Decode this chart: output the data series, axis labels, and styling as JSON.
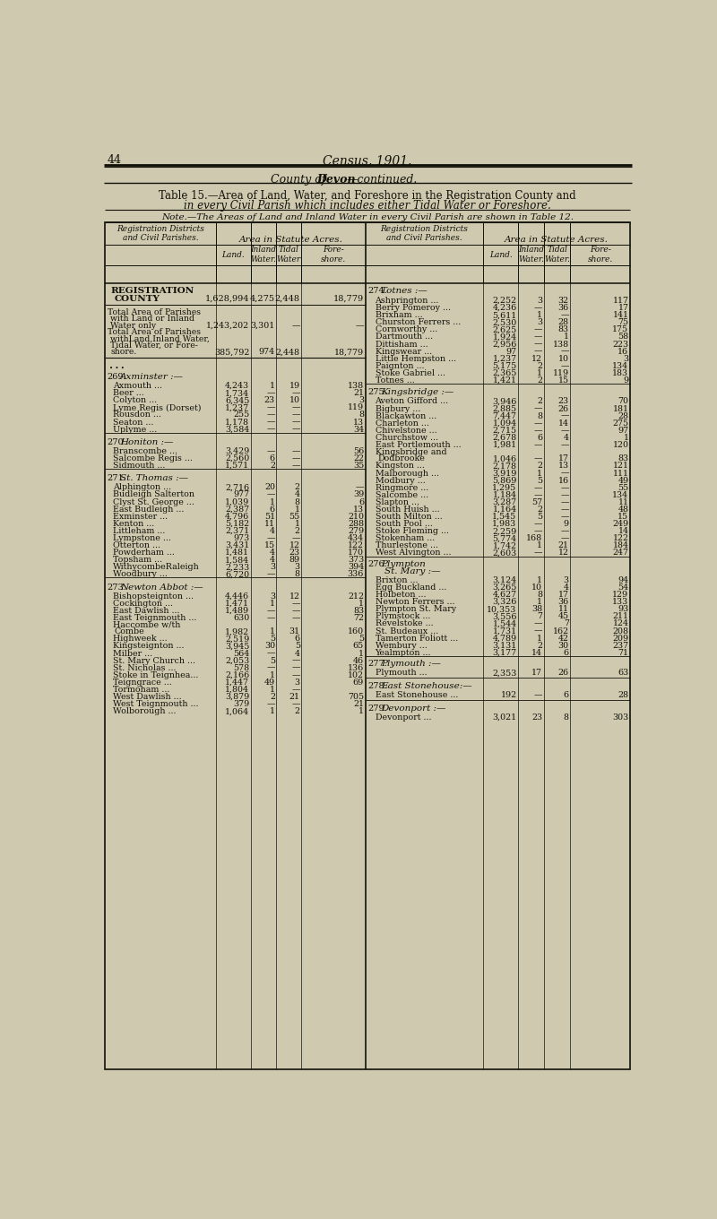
{
  "page_num": "44",
  "page_title": "Census, 1901.",
  "county_header_pre": "County of ",
  "county_header_bold": "Devon",
  "county_header_post": "—continued.",
  "table_title_line1": "Table 15.—Area of Land, Water, and Foreshore in the Registration County and",
  "table_title_line2": "in every Civil Parish which includes either Tidal Water or Foreshore.",
  "note": "Note.—The Areas of Land and Inland Water in every Civil Parish are shown in Table 12.",
  "area_header": "Area in Statute Acres.",
  "reg_dist_header": "Registration Districts\nand Civil Parishes.",
  "sub_cols": [
    "Land.",
    "Inland\nWater.",
    "Tidal\nWater",
    "Fore-\nshore."
  ],
  "bg_color": "#cfc9b0",
  "text_color": "#111108",
  "left_sections": [
    {
      "type": "summary",
      "name": "REGISTRATION\nCOUNTY",
      "land": "1,628,994",
      "inland": "4,275",
      "tidal": "2,448",
      "fore": "18,779"
    },
    {
      "type": "totals",
      "entries": [
        {
          "name": "Total Area of Parishes\nwith Land or Inland\nWater only",
          "land": "1,243,202",
          "inland": "3,301",
          "tidal": "—",
          "fore": "—"
        },
        {
          "name": "Total Area of Parishes\nwithLand,Inland Water,\nTidal Water, or Fore-\nshore.",
          "land": "385,792",
          "inland": "974",
          "tidal": "2,448",
          "fore": "18,779"
        }
      ]
    },
    {
      "type": "district",
      "num": "269.",
      "name": "Axminster :—",
      "parishes": [
        {
          "name": "Axmouth ...",
          "land": "4,243",
          "inland": "1",
          "tidal": "19",
          "fore": "138"
        },
        {
          "name": "Beer ...",
          "land": "1,734",
          "inland": "—",
          "tidal": "—",
          "fore": "21"
        },
        {
          "name": "Colyton ...",
          "land": "6,345",
          "inland": "23",
          "tidal": "10",
          "fore": "3"
        },
        {
          "name": "Lyme Regis (Dorset)",
          "land": "1,237",
          "inland": "—",
          "tidal": "—",
          "fore": "119"
        },
        {
          "name": "Rousdon ...",
          "land": "255",
          "inland": "—",
          "tidal": "—",
          "fore": "8"
        },
        {
          "name": "Seaton ...",
          "land": "1,178",
          "inland": "—",
          "tidal": "—",
          "fore": "13"
        },
        {
          "name": "Uplyme ...",
          "land": "3,584",
          "inland": "—",
          "tidal": "—",
          "fore": "34"
        }
      ]
    },
    {
      "type": "district",
      "num": "270.",
      "name": "Honiton :—",
      "parishes": [
        {
          "name": "Branscombe ...",
          "land": "3,429",
          "inland": "—",
          "tidal": "—",
          "fore": "56"
        },
        {
          "name": "Salcombe Regis ...",
          "land": "2,560",
          "inland": "6",
          "tidal": "—",
          "fore": "22"
        },
        {
          "name": "Sidmouth ...",
          "land": "1,571",
          "inland": "2",
          "tidal": "—",
          "fore": "35"
        }
      ]
    },
    {
      "type": "district",
      "num": "271.",
      "name": "St. Thomas :—",
      "parishes": [
        {
          "name": "Alphington ...",
          "land": "2,716",
          "inland": "20",
          "tidal": "2",
          "fore": "—"
        },
        {
          "name": "Budleigh Salterton",
          "land": "977",
          "inland": "—",
          "tidal": "4",
          "fore": "39"
        },
        {
          "name": "Clyst St. George ...",
          "land": "1,039",
          "inland": "1",
          "tidal": "8",
          "fore": "6"
        },
        {
          "name": "East Budleigh ...",
          "land": "2,387",
          "inland": "6",
          "tidal": "1",
          "fore": "13"
        },
        {
          "name": "Exminster ...",
          "land": "4,796",
          "inland": "51",
          "tidal": "55",
          "fore": "210"
        },
        {
          "name": "Kenton ...",
          "land": "5,182",
          "inland": "11",
          "tidal": "1",
          "fore": "288"
        },
        {
          "name": "Littleham ...",
          "land": "2,371",
          "inland": "4",
          "tidal": "2",
          "fore": "279"
        },
        {
          "name": "Lympstone ...",
          "land": "973",
          "inland": "—",
          "tidal": "—",
          "fore": "434"
        },
        {
          "name": "Otterton ...",
          "land": "3,431",
          "inland": "15",
          "tidal": "12",
          "fore": "122"
        },
        {
          "name": "Powderham ...",
          "land": "1,481",
          "inland": "4",
          "tidal": "23",
          "fore": "170"
        },
        {
          "name": "Topsham ...",
          "land": "1,584",
          "inland": "4",
          "tidal": "89",
          "fore": "373"
        },
        {
          "name": "WithycombeRaleigh",
          "land": "2,233",
          "inland": "3",
          "tidal": "3",
          "fore": "394"
        },
        {
          "name": "Woodbury ...",
          "land": "6,720",
          "inland": "—",
          "tidal": "8",
          "fore": "336"
        }
      ]
    },
    {
      "type": "district",
      "num": "273.",
      "name": "Newton Abbot :—",
      "parishes": [
        {
          "name": "Bishopsteignton ...",
          "land": "4,446",
          "inland": "3",
          "tidal": "12",
          "fore": "212"
        },
        {
          "name": "Cockington ...",
          "land": "1,471",
          "inland": "1",
          "tidal": "—",
          "fore": "1"
        },
        {
          "name": "East Dawlish ...",
          "land": "1,489",
          "inland": "—",
          "tidal": "—",
          "fore": "83"
        },
        {
          "name": "East Teignmouth ...",
          "land": "630",
          "inland": "—",
          "tidal": "—",
          "fore": "72"
        },
        {
          "name": "Haccombe w/th\nCombe",
          "land": "1,982",
          "inland": "1",
          "tidal": "31",
          "fore": "160"
        },
        {
          "name": "Highweek ...",
          "land": "2,519",
          "inland": "5",
          "tidal": "6",
          "fore": "5"
        },
        {
          "name": "Kingsteignton ...",
          "land": "3,945",
          "inland": "30",
          "tidal": "5",
          "fore": "65"
        },
        {
          "name": "Milber ...",
          "land": "564",
          "inland": "—",
          "tidal": "4",
          "fore": "1"
        },
        {
          "name": "St. Mary Church ...",
          "land": "2,053",
          "inland": "5",
          "tidal": "—",
          "fore": "46"
        },
        {
          "name": "St. Nicholas ...",
          "land": "578",
          "inland": "—",
          "tidal": "—",
          "fore": "136"
        },
        {
          "name": "Stoke in Teignhea...",
          "land": "2,166",
          "inland": "1",
          "tidal": "—",
          "fore": "102"
        },
        {
          "name": "Teigngrace ...",
          "land": "1,447",
          "inland": "49",
          "tidal": "3",
          "fore": "69"
        },
        {
          "name": "Tormoham ...",
          "land": "1,804",
          "inland": "1",
          "tidal": "—",
          "fore": ""
        },
        {
          "name": "West Dawlish ...",
          "land": "3,879",
          "inland": "2",
          "tidal": "21",
          "fore": "705"
        },
        {
          "name": "West Teignmouth ...",
          "land": "379",
          "inland": "—",
          "tidal": "—",
          "fore": "21"
        },
        {
          "name": "Wolborough ...",
          "land": "1,064",
          "inland": "1",
          "tidal": "2",
          "fore": "1"
        }
      ]
    }
  ],
  "right_sections": [
    {
      "type": "district",
      "num": "274.",
      "name": "Totnes :—",
      "parishes": [
        {
          "name": "Ashprington ...",
          "land": "2,252",
          "inland": "3",
          "tidal": "32",
          "fore": "117"
        },
        {
          "name": "Berry Pomeroy ...",
          "land": "4,236",
          "inland": "—",
          "tidal": "36",
          "fore": "17"
        },
        {
          "name": "Brixham ...",
          "land": "5,611",
          "inland": "1",
          "tidal": "—",
          "fore": "141"
        },
        {
          "name": "Churston Ferrers ...",
          "land": "2,530",
          "inland": "3",
          "tidal": "28",
          "fore": "75"
        },
        {
          "name": "Cornworthy ...",
          "land": "2,625",
          "inland": "—",
          "tidal": "83",
          "fore": "175"
        },
        {
          "name": "Dartmouth ...",
          "land": "1,924",
          "inland": "—",
          "tidal": "1",
          "fore": "58"
        },
        {
          "name": "Dittisham ...",
          "land": "2,956",
          "inland": "—",
          "tidal": "138",
          "fore": "223"
        },
        {
          "name": "Kingswear ...",
          "land": "97",
          "inland": "—",
          "tidal": "—",
          "fore": "16"
        },
        {
          "name": "Little Hempston ...",
          "land": "1,237",
          "inland": "12",
          "tidal": "10",
          "fore": "3"
        },
        {
          "name": "Paignton ...",
          "land": "5,175",
          "inland": "2",
          "tidal": "—",
          "fore": "134"
        },
        {
          "name": "Stoke Gabriel ...",
          "land": "2,365",
          "inland": "1",
          "tidal": "119",
          "fore": "183"
        },
        {
          "name": "Totnes ...",
          "land": "1,421",
          "inland": "2",
          "tidal": "15",
          "fore": "9"
        }
      ]
    },
    {
      "type": "district",
      "num": "275.",
      "name": "Kingsbridge :—",
      "parishes": [
        {
          "name": "Aveton Gifford ...",
          "land": "3,946",
          "inland": "2",
          "tidal": "23",
          "fore": "70"
        },
        {
          "name": "Bigbury ...",
          "land": "2,885",
          "inland": "—",
          "tidal": "26",
          "fore": "181"
        },
        {
          "name": "Blackawton ...",
          "land": "7,447",
          "inland": "8",
          "tidal": "—",
          "fore": "28"
        },
        {
          "name": "Charleton ...",
          "land": "1,094",
          "inland": "—",
          "tidal": "14",
          "fore": "275"
        },
        {
          "name": "Chivelstone ...",
          "land": "2,715",
          "inland": "—",
          "tidal": "—",
          "fore": "97"
        },
        {
          "name": "Churchstow ...",
          "land": "2,678",
          "inland": "6",
          "tidal": "4",
          "fore": "1"
        },
        {
          "name": "East Portlemouth ...",
          "land": "1,981",
          "inland": "—",
          "tidal": "—",
          "fore": "120"
        },
        {
          "name": "Kingsbridge and\nDodbrooke",
          "land": "1,046",
          "inland": "—",
          "tidal": "17",
          "fore": "83"
        },
        {
          "name": "Kingston ...",
          "land": "2,178",
          "inland": "2",
          "tidal": "13",
          "fore": "121"
        },
        {
          "name": "Malborough ...",
          "land": "3,919",
          "inland": "1",
          "tidal": "—",
          "fore": "111"
        },
        {
          "name": "Modbury ...",
          "land": "5,869",
          "inland": "5",
          "tidal": "16",
          "fore": "49"
        },
        {
          "name": "Ringmore ...",
          "land": "1,295",
          "inland": "—",
          "tidal": "—",
          "fore": "55"
        },
        {
          "name": "Salcombe ...",
          "land": "1,184",
          "inland": "—",
          "tidal": "—",
          "fore": "134"
        },
        {
          "name": "Slapton ...",
          "land": "3,287",
          "inland": "57",
          "tidal": "—",
          "fore": "11"
        },
        {
          "name": "South Huish ...",
          "land": "1,164",
          "inland": "2",
          "tidal": "—",
          "fore": "48"
        },
        {
          "name": "South Milton ...",
          "land": "1,545",
          "inland": "5",
          "tidal": "—",
          "fore": "15"
        },
        {
          "name": "South Pool ...",
          "land": "1,983",
          "inland": "—",
          "tidal": "9",
          "fore": "249"
        },
        {
          "name": "Stoke Fleming ...",
          "land": "2,259",
          "inland": "—",
          "tidal": "—",
          "fore": "14"
        },
        {
          "name": "Stokenham ...",
          "land": "5,774",
          "inland": "168",
          "tidal": "—",
          "fore": "122"
        },
        {
          "name": "Thurlestone ...",
          "land": "1,742",
          "inland": "1",
          "tidal": "21",
          "fore": "184"
        },
        {
          "name": "West Alvington ...",
          "land": "2,603",
          "inland": "—",
          "tidal": "12",
          "fore": "247"
        }
      ]
    },
    {
      "type": "district",
      "num": "276.",
      "name": "Plympton\nSt. Mary :—",
      "parishes": [
        {
          "name": "Brixton ...",
          "land": "3,124",
          "inland": "1",
          "tidal": "3",
          "fore": "94"
        },
        {
          "name": "Egg Buckland ...",
          "land": "3,265",
          "inland": "10",
          "tidal": "4",
          "fore": "54"
        },
        {
          "name": "Holbeton ...",
          "land": "4,627",
          "inland": "8",
          "tidal": "17",
          "fore": "129"
        },
        {
          "name": "Newton Ferrers ...",
          "land": "3,326",
          "inland": "1",
          "tidal": "36",
          "fore": "133"
        },
        {
          "name": "Plympton St. Mary",
          "land": "10,353",
          "inland": "38",
          "tidal": "11",
          "fore": "93"
        },
        {
          "name": "Plymstock ...",
          "land": "3,556",
          "inland": "7",
          "tidal": "45",
          "fore": "211"
        },
        {
          "name": "Revelstoke ...",
          "land": "1,544",
          "inland": "—",
          "tidal": "7",
          "fore": "124"
        },
        {
          "name": "St. Budeaux ...",
          "land": "1,731",
          "inland": "—",
          "tidal": "162",
          "fore": "208"
        },
        {
          "name": "Tamerton Foliott ...",
          "land": "4,789",
          "inland": "1",
          "tidal": "42",
          "fore": "209"
        },
        {
          "name": "Wembury ...",
          "land": "3,131",
          "inland": "2",
          "tidal": "30",
          "fore": "237"
        },
        {
          "name": "Yealmpton ...",
          "land": "3,177",
          "inland": "14",
          "tidal": "6",
          "fore": "71"
        }
      ]
    },
    {
      "type": "district",
      "num": "277.",
      "name": "Plymouth :—",
      "parishes": [
        {
          "name": "Plymouth ...",
          "land": "2,353",
          "inland": "17",
          "tidal": "26",
          "fore": "63"
        }
      ]
    },
    {
      "type": "district",
      "num": "278.",
      "name": "East Stonehouse:—",
      "parishes": [
        {
          "name": "East Stonehouse ...",
          "land": "192",
          "inland": "—",
          "tidal": "6",
          "fore": "28"
        }
      ]
    },
    {
      "type": "district",
      "num": "279.",
      "name": "Devonport :—",
      "parishes": [
        {
          "name": "Devonport ...",
          "land": "3,021",
          "inland": "23",
          "tidal": "8",
          "fore": "303"
        }
      ]
    }
  ]
}
